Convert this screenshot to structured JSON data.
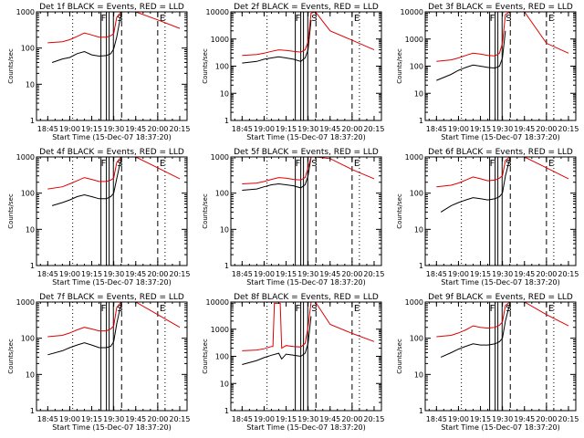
{
  "figure": {
    "panel_title_template": "{det} BLACK = Events, RED = LLD",
    "x_tick_labels": [
      "18:45",
      "19:00",
      "19:15",
      "19:30",
      "19:45",
      "20:00",
      "20:15"
    ],
    "xlabel": "Start Time (15-Dec-07 18:37:20)",
    "ylabel": "Counts/sec",
    "colors": {
      "events": "#000000",
      "lld": "#e00000"
    }
  },
  "chart_data": [
    {
      "type": "line",
      "title": "Det 1f BLACK = Events, RED = LLD",
      "det": "Det 1f",
      "ylim": [
        1,
        1000
      ],
      "y_tick_labels": [
        "1",
        "10",
        "100",
        "1000"
      ],
      "xlabel": "Start Time (15-Dec-07 18:37:20)",
      "ylabel": "Counts/sec",
      "markers": [
        {
          "label": "F",
          "x": "19:25"
        },
        {
          "label": "S",
          "x": "19:31"
        },
        {
          "label": "E",
          "x": "20:00"
        }
      ],
      "series": [
        {
          "name": "Events",
          "x": [
            "18:48",
            "18:55",
            "19:00",
            "19:05",
            "19:10",
            "19:15",
            "19:20",
            "19:25",
            "19:28",
            "19:30",
            "19:32",
            "19:35"
          ],
          "values": [
            40,
            50,
            55,
            70,
            80,
            65,
            60,
            62,
            70,
            95,
            200,
            900
          ]
        },
        {
          "name": "LLD",
          "x": [
            "18:45",
            "18:55",
            "19:00",
            "19:05",
            "19:10",
            "19:15",
            "19:20",
            "19:25",
            "19:28",
            "19:30",
            "19:32",
            "19:35",
            "19:45",
            "20:00",
            "20:15"
          ],
          "values": [
            140,
            150,
            170,
            210,
            260,
            230,
            200,
            200,
            220,
            250,
            700,
            1000,
            1000,
            600,
            350
          ]
        }
      ]
    },
    {
      "type": "line",
      "title": "Det 2f BLACK = Events, RED = LLD",
      "det": "Det 2f",
      "ylim": [
        1,
        10000
      ],
      "y_tick_labels": [
        "1",
        "10",
        "100",
        "1000",
        "10000"
      ],
      "xlabel": "Start Time (15-Dec-07 18:37:20)",
      "ylabel": "Counts/sec",
      "markers": [
        {
          "label": "F",
          "x": "19:25"
        },
        {
          "label": "S",
          "x": "19:31"
        },
        {
          "label": "E",
          "x": "20:00"
        }
      ],
      "series": [
        {
          "name": "Events",
          "x": [
            "18:45",
            "18:55",
            "19:00",
            "19:05",
            "19:10",
            "19:15",
            "19:20",
            "19:25",
            "19:28",
            "19:30",
            "19:32"
          ],
          "values": [
            130,
            150,
            180,
            200,
            220,
            200,
            180,
            150,
            200,
            400,
            5000
          ]
        },
        {
          "name": "LLD",
          "x": [
            "18:45",
            "18:55",
            "19:00",
            "19:05",
            "19:10",
            "19:15",
            "19:20",
            "19:25",
            "19:28",
            "19:30",
            "19:32",
            "19:35",
            "19:45",
            "20:00",
            "20:15"
          ],
          "values": [
            250,
            270,
            300,
            350,
            400,
            380,
            350,
            330,
            400,
            800,
            9000,
            10000,
            2000,
            900,
            400
          ]
        }
      ]
    },
    {
      "type": "line",
      "title": "Det 3f BLACK = Events, RED = LLD",
      "det": "Det 3f",
      "ylim": [
        1,
        10000
      ],
      "y_tick_labels": [
        "1",
        "10",
        "100",
        "1000",
        "10000"
      ],
      "xlabel": "Start Time (15-Dec-07 18:37:20)",
      "ylabel": "Counts/sec",
      "markers": [
        {
          "label": "F",
          "x": "19:25"
        },
        {
          "label": "S",
          "x": "19:31"
        },
        {
          "label": "E",
          "x": "20:00"
        }
      ],
      "series": [
        {
          "name": "Events",
          "x": [
            "18:45",
            "18:55",
            "19:00",
            "19:05",
            "19:10",
            "19:15",
            "19:20",
            "19:25",
            "19:28",
            "19:30",
            "19:32"
          ],
          "values": [
            30,
            50,
            70,
            90,
            110,
            100,
            90,
            85,
            100,
            200,
            2000
          ]
        },
        {
          "name": "LLD",
          "x": [
            "18:45",
            "18:55",
            "19:00",
            "19:05",
            "19:10",
            "19:15",
            "19:20",
            "19:25",
            "19:28",
            "19:30",
            "19:32",
            "19:35",
            "19:45",
            "20:00",
            "20:15"
          ],
          "values": [
            150,
            170,
            200,
            250,
            300,
            280,
            250,
            240,
            300,
            700,
            8000,
            10000,
            10000,
            700,
            300
          ]
        }
      ]
    },
    {
      "type": "line",
      "title": "Det 4f BLACK = Events, RED = LLD",
      "det": "Det 4f",
      "ylim": [
        1,
        1000
      ],
      "y_tick_labels": [
        "1",
        "10",
        "100",
        "1000"
      ],
      "xlabel": "Start Time (15-Dec-07 18:37:20)",
      "ylabel": "Counts/sec",
      "markers": [
        {
          "label": "F",
          "x": "19:25"
        },
        {
          "label": "S",
          "x": "19:31"
        },
        {
          "label": "E",
          "x": "20:00"
        }
      ],
      "series": [
        {
          "name": "Events",
          "x": [
            "18:48",
            "18:55",
            "19:00",
            "19:05",
            "19:10",
            "19:15",
            "19:20",
            "19:25",
            "19:28",
            "19:30",
            "19:32",
            "19:35"
          ],
          "values": [
            45,
            55,
            65,
            80,
            90,
            80,
            70,
            70,
            80,
            100,
            250,
            900
          ]
        },
        {
          "name": "LLD",
          "x": [
            "18:45",
            "18:55",
            "19:00",
            "19:05",
            "19:10",
            "19:15",
            "19:20",
            "19:25",
            "19:28",
            "19:30",
            "19:32",
            "19:35",
            "19:45",
            "20:00",
            "20:15"
          ],
          "values": [
            130,
            150,
            180,
            220,
            270,
            240,
            210,
            210,
            230,
            260,
            700,
            1000,
            1000,
            500,
            250
          ]
        }
      ]
    },
    {
      "type": "line",
      "title": "Det 5f BLACK = Events, RED = LLD",
      "det": "Det 5f",
      "ylim": [
        1,
        1000
      ],
      "y_tick_labels": [
        "1",
        "10",
        "100",
        "1000"
      ],
      "xlabel": "Start Time (15-Dec-07 18:37:20)",
      "ylabel": "Counts/sec",
      "markers": [
        {
          "label": "F",
          "x": "19:25"
        },
        {
          "label": "S",
          "x": "19:31"
        },
        {
          "label": "E",
          "x": "20:00"
        }
      ],
      "series": [
        {
          "name": "Events",
          "x": [
            "18:45",
            "18:55",
            "19:00",
            "19:05",
            "19:10",
            "19:15",
            "19:20",
            "19:25",
            "19:28",
            "19:30",
            "19:32"
          ],
          "values": [
            120,
            130,
            150,
            170,
            180,
            170,
            160,
            140,
            170,
            300,
            1000
          ]
        },
        {
          "name": "LLD",
          "x": [
            "18:45",
            "18:55",
            "19:00",
            "19:05",
            "19:10",
            "19:15",
            "19:20",
            "19:25",
            "19:28",
            "19:30",
            "19:32",
            "19:35",
            "19:45",
            "20:00",
            "20:15"
          ],
          "values": [
            180,
            190,
            210,
            240,
            270,
            260,
            240,
            230,
            270,
            500,
            1000,
            1000,
            900,
            450,
            250
          ]
        }
      ]
    },
    {
      "type": "line",
      "title": "Det 6f BLACK = Events, RED = LLD",
      "det": "Det 6f",
      "ylim": [
        1,
        1000
      ],
      "y_tick_labels": [
        "1",
        "10",
        "100",
        "1000"
      ],
      "xlabel": "Start Time (15-Dec-07 18:37:20)",
      "ylabel": "Counts/sec",
      "markers": [
        {
          "label": "F",
          "x": "19:25"
        },
        {
          "label": "S",
          "x": "19:31"
        },
        {
          "label": "E",
          "x": "20:00"
        }
      ],
      "series": [
        {
          "name": "Events",
          "x": [
            "18:48",
            "18:55",
            "19:00",
            "19:05",
            "19:10",
            "19:15",
            "19:20",
            "19:25",
            "19:28",
            "19:30",
            "19:32",
            "19:35"
          ],
          "values": [
            30,
            45,
            55,
            65,
            75,
            70,
            65,
            70,
            80,
            100,
            300,
            900
          ]
        },
        {
          "name": "LLD",
          "x": [
            "18:45",
            "18:55",
            "19:00",
            "19:05",
            "19:10",
            "19:15",
            "19:20",
            "19:25",
            "19:28",
            "19:30",
            "19:32",
            "19:35",
            "19:45",
            "20:00",
            "20:15"
          ],
          "values": [
            150,
            165,
            190,
            230,
            280,
            250,
            220,
            230,
            260,
            300,
            800,
            1000,
            1000,
            500,
            250
          ]
        }
      ]
    },
    {
      "type": "line",
      "title": "Det 7f BLACK = Events, RED = LLD",
      "det": "Det 7f",
      "ylim": [
        1,
        1000
      ],
      "y_tick_labels": [
        "1",
        "10",
        "100",
        "1000"
      ],
      "xlabel": "Start Time (15-Dec-07 18:37:20)",
      "ylabel": "Counts/sec",
      "markers": [
        {
          "label": "F",
          "x": "19:25"
        },
        {
          "label": "S",
          "x": "19:31"
        },
        {
          "label": "E",
          "x": "20:00"
        }
      ],
      "series": [
        {
          "name": "Events",
          "x": [
            "18:45",
            "18:55",
            "19:00",
            "19:05",
            "19:10",
            "19:15",
            "19:20",
            "19:25",
            "19:28",
            "19:30",
            "19:32",
            "19:35"
          ],
          "values": [
            35,
            45,
            55,
            65,
            75,
            65,
            55,
            55,
            60,
            80,
            250,
            900
          ]
        },
        {
          "name": "LLD",
          "x": [
            "18:45",
            "18:55",
            "19:00",
            "19:05",
            "19:10",
            "19:15",
            "19:20",
            "19:25",
            "19:28",
            "19:30",
            "19:32",
            "19:35",
            "19:45",
            "20:00",
            "20:15"
          ],
          "values": [
            110,
            120,
            140,
            170,
            200,
            180,
            160,
            160,
            180,
            220,
            700,
            1000,
            1000,
            450,
            200
          ]
        }
      ]
    },
    {
      "type": "line",
      "title": "Det 8f BLACK = Events, RED = LLD",
      "det": "Det 8f",
      "ylim": [
        1,
        10000
      ],
      "y_tick_labels": [
        "1",
        "10",
        "100",
        "1000",
        "10000"
      ],
      "xlabel": "Start Time (15-Dec-07 18:37:20)",
      "ylabel": "Counts/sec",
      "markers": [
        {
          "label": "F",
          "x": "19:25"
        },
        {
          "label": "S",
          "x": "19:31"
        },
        {
          "label": "E",
          "x": "20:00"
        }
      ],
      "series": [
        {
          "name": "Events",
          "x": [
            "18:45",
            "18:55",
            "19:00",
            "19:05",
            "19:10",
            "19:12",
            "19:15",
            "19:20",
            "19:25",
            "19:28",
            "19:30",
            "19:32"
          ],
          "values": [
            50,
            70,
            90,
            110,
            130,
            80,
            120,
            110,
            100,
            130,
            300,
            3000
          ]
        },
        {
          "name": "LLD",
          "x": [
            "18:45",
            "18:55",
            "19:00",
            "19:05",
            "19:06",
            "19:07",
            "19:11",
            "19:12",
            "19:15",
            "19:20",
            "19:25",
            "19:28",
            "19:30",
            "19:32",
            "19:35",
            "19:45",
            "20:00",
            "20:15"
          ],
          "values": [
            160,
            170,
            190,
            230,
            230,
            9000,
            9000,
            200,
            250,
            230,
            220,
            300,
            1200,
            10000,
            10000,
            1500,
            700,
            350
          ]
        }
      ]
    },
    {
      "type": "line",
      "title": "Det 9f BLACK = Events, RED = LLD",
      "det": "Det 9f",
      "ylim": [
        1,
        1000
      ],
      "y_tick_labels": [
        "1",
        "10",
        "100",
        "1000"
      ],
      "xlabel": "Start Time (15-Dec-07 18:37:20)",
      "ylabel": "Counts/sec",
      "markers": [
        {
          "label": "F",
          "x": "19:25"
        },
        {
          "label": "S",
          "x": "19:31"
        },
        {
          "label": "E",
          "x": "20:00"
        }
      ],
      "series": [
        {
          "name": "Events",
          "x": [
            "18:48",
            "18:55",
            "19:00",
            "19:05",
            "19:10",
            "19:15",
            "19:20",
            "19:25",
            "19:28",
            "19:30",
            "19:32",
            "19:35"
          ],
          "values": [
            30,
            40,
            50,
            60,
            70,
            65,
            65,
            70,
            80,
            100,
            300,
            900
          ]
        },
        {
          "name": "LLD",
          "x": [
            "18:45",
            "18:55",
            "19:00",
            "19:05",
            "19:10",
            "19:15",
            "19:20",
            "19:25",
            "19:28",
            "19:30",
            "19:32",
            "19:35",
            "19:45",
            "20:00",
            "20:15"
          ],
          "values": [
            110,
            120,
            140,
            170,
            220,
            200,
            190,
            200,
            230,
            280,
            800,
            1000,
            1000,
            450,
            220
          ]
        }
      ]
    }
  ]
}
